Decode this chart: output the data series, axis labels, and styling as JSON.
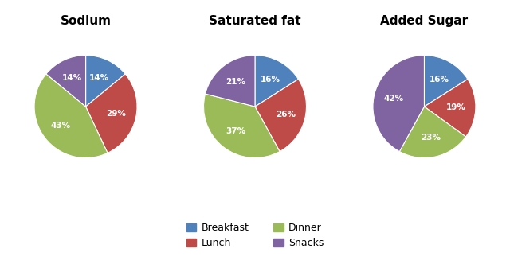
{
  "charts": [
    {
      "title": "Sodium",
      "values": [
        14,
        29,
        43,
        14
      ],
      "labels": [
        "Breakfast",
        "Lunch",
        "Dinner",
        "Snacks"
      ],
      "startangle": 90
    },
    {
      "title": "Saturated fat",
      "values": [
        16,
        26,
        37,
        21
      ],
      "labels": [
        "Breakfast",
        "Lunch",
        "Dinner",
        "Snacks"
      ],
      "startangle": 90
    },
    {
      "title": "Added Sugar",
      "values": [
        16,
        19,
        23,
        42
      ],
      "labels": [
        "Breakfast",
        "Lunch",
        "Dinner",
        "Snacks"
      ],
      "startangle": 90
    }
  ],
  "colors": {
    "Breakfast": "#4F81BD",
    "Lunch": "#BE4B48",
    "Dinner": "#9BBB59",
    "Snacks": "#8064A2"
  },
  "legend_labels": [
    "Breakfast",
    "Lunch",
    "Dinner",
    "Snacks"
  ],
  "font_color": "white",
  "label_fontsize": 7.5,
  "title_fontsize": 11
}
